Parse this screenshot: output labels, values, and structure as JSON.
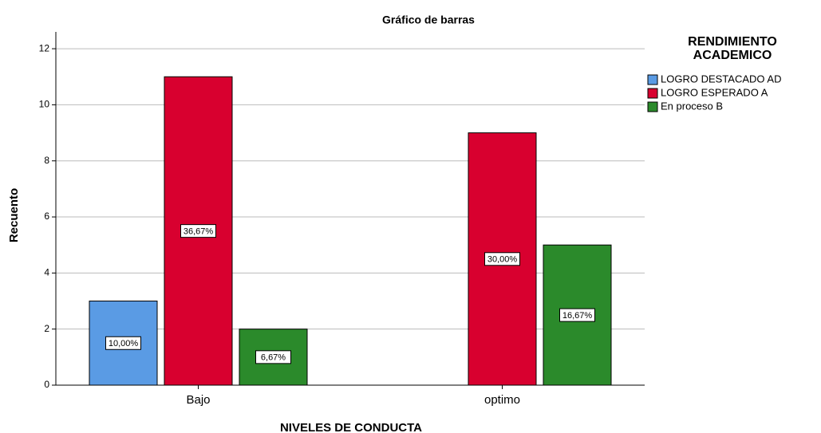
{
  "chart_data": {
    "type": "bar",
    "title": "Gráfico de barras",
    "x_label": "NIVELES DE CONDUCTA",
    "y_label": "Recuento",
    "legend_title": "RENDIMIENTO ACADEMICO",
    "categories": [
      "Bajo",
      "optimo"
    ],
    "series": [
      {
        "name": "LOGRO DESTACADO AD",
        "color": "#5a9be4",
        "values": [
          3,
          null
        ],
        "percents": [
          10.0,
          null
        ],
        "percent_labels": [
          "10,00%",
          null
        ]
      },
      {
        "name": "LOGRO ESPERADO A",
        "color": "#d8002f",
        "values": [
          11,
          9
        ],
        "percents": [
          36.67,
          30.0
        ],
        "percent_labels": [
          "36,67%",
          "30,00%"
        ]
      },
      {
        "name": "En proceso B",
        "color": "#2b8a2b",
        "values": [
          2,
          5
        ],
        "percents": [
          6.67,
          16.67
        ],
        "percent_labels": [
          "6,67%",
          "16,67%"
        ]
      }
    ],
    "ylim": [
      0,
      12.6
    ],
    "yticks": [
      0,
      2,
      4,
      6,
      8,
      10,
      12
    ],
    "grid": true,
    "legend": "right"
  }
}
